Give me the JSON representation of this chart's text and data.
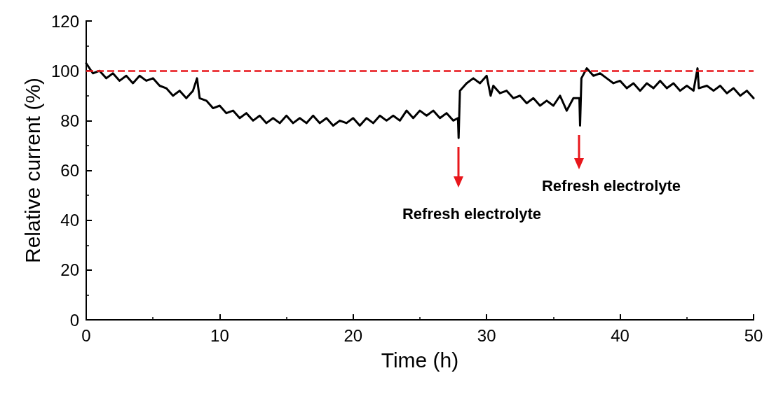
{
  "chart_data": {
    "type": "line",
    "xlabel": "Time (h)",
    "ylabel": "Relative current (%)",
    "xlim": [
      0,
      50
    ],
    "xticks": [
      0,
      10,
      20,
      30,
      40,
      50
    ],
    "ylim": [
      0,
      120
    ],
    "yticks": [
      0,
      20,
      40,
      60,
      80,
      100,
      120
    ],
    "grid": false,
    "marker": "none",
    "series": [
      {
        "color": "#000000",
        "line_style": "solid",
        "x": [
          0,
          0.5,
          1,
          1.5,
          2,
          2.5,
          3,
          3.5,
          4,
          4.5,
          5,
          5.5,
          6,
          6.5,
          7,
          7.5,
          8,
          8.3,
          8.5,
          9,
          9.5,
          10,
          10.5,
          11,
          11.5,
          12,
          12.5,
          13,
          13.5,
          14,
          14.5,
          15,
          15.5,
          16,
          16.5,
          17,
          17.5,
          18,
          18.5,
          19,
          19.5,
          20,
          20.5,
          21,
          21.5,
          22,
          22.5,
          23,
          23.5,
          24,
          24.5,
          25,
          25.5,
          26,
          26.5,
          27,
          27.5,
          27.85,
          27.9,
          28,
          28.5,
          29,
          29.5,
          30,
          30.3,
          30.5,
          31,
          31.5,
          32,
          32.5,
          33,
          33.5,
          34,
          34.5,
          35,
          35.5,
          36,
          36.5,
          36.95,
          37,
          37.1,
          37.5,
          38,
          38.5,
          39,
          39.5,
          40,
          40.5,
          41,
          41.5,
          42,
          42.5,
          43,
          43.5,
          44,
          44.5,
          45,
          45.5,
          45.8,
          45.9,
          46.5,
          47,
          47.5,
          48,
          48.5,
          49,
          49.5,
          50
        ],
        "values": [
          103,
          99,
          100,
          97,
          99,
          96,
          98,
          95,
          98,
          96,
          97,
          94,
          93,
          90,
          92,
          89,
          92,
          97,
          89,
          88,
          85,
          86,
          83,
          84,
          81,
          83,
          80,
          82,
          79,
          81,
          79,
          82,
          79,
          81,
          79,
          82,
          79,
          81,
          78,
          80,
          79,
          81,
          78,
          81,
          79,
          82,
          80,
          82,
          80,
          84,
          81,
          84,
          82,
          84,
          81,
          83,
          80,
          81,
          73,
          92,
          95,
          97,
          95,
          98,
          90,
          94,
          91,
          92,
          89,
          90,
          87,
          89,
          86,
          88,
          86,
          90,
          84,
          89,
          89,
          78,
          97,
          101,
          98,
          99,
          97,
          95,
          96,
          93,
          95,
          92,
          95,
          93,
          96,
          93,
          95,
          92,
          94,
          92,
          101,
          93,
          94,
          92,
          94,
          91,
          93,
          90,
          92,
          89
        ]
      }
    ],
    "ref_lines": [
      {
        "axis": "y",
        "value": 100,
        "color": "#e8161b",
        "line_style": "dashed"
      }
    ],
    "annotations": [
      "Refresh electrolyte",
      "Refresh electrolyte"
    ]
  }
}
